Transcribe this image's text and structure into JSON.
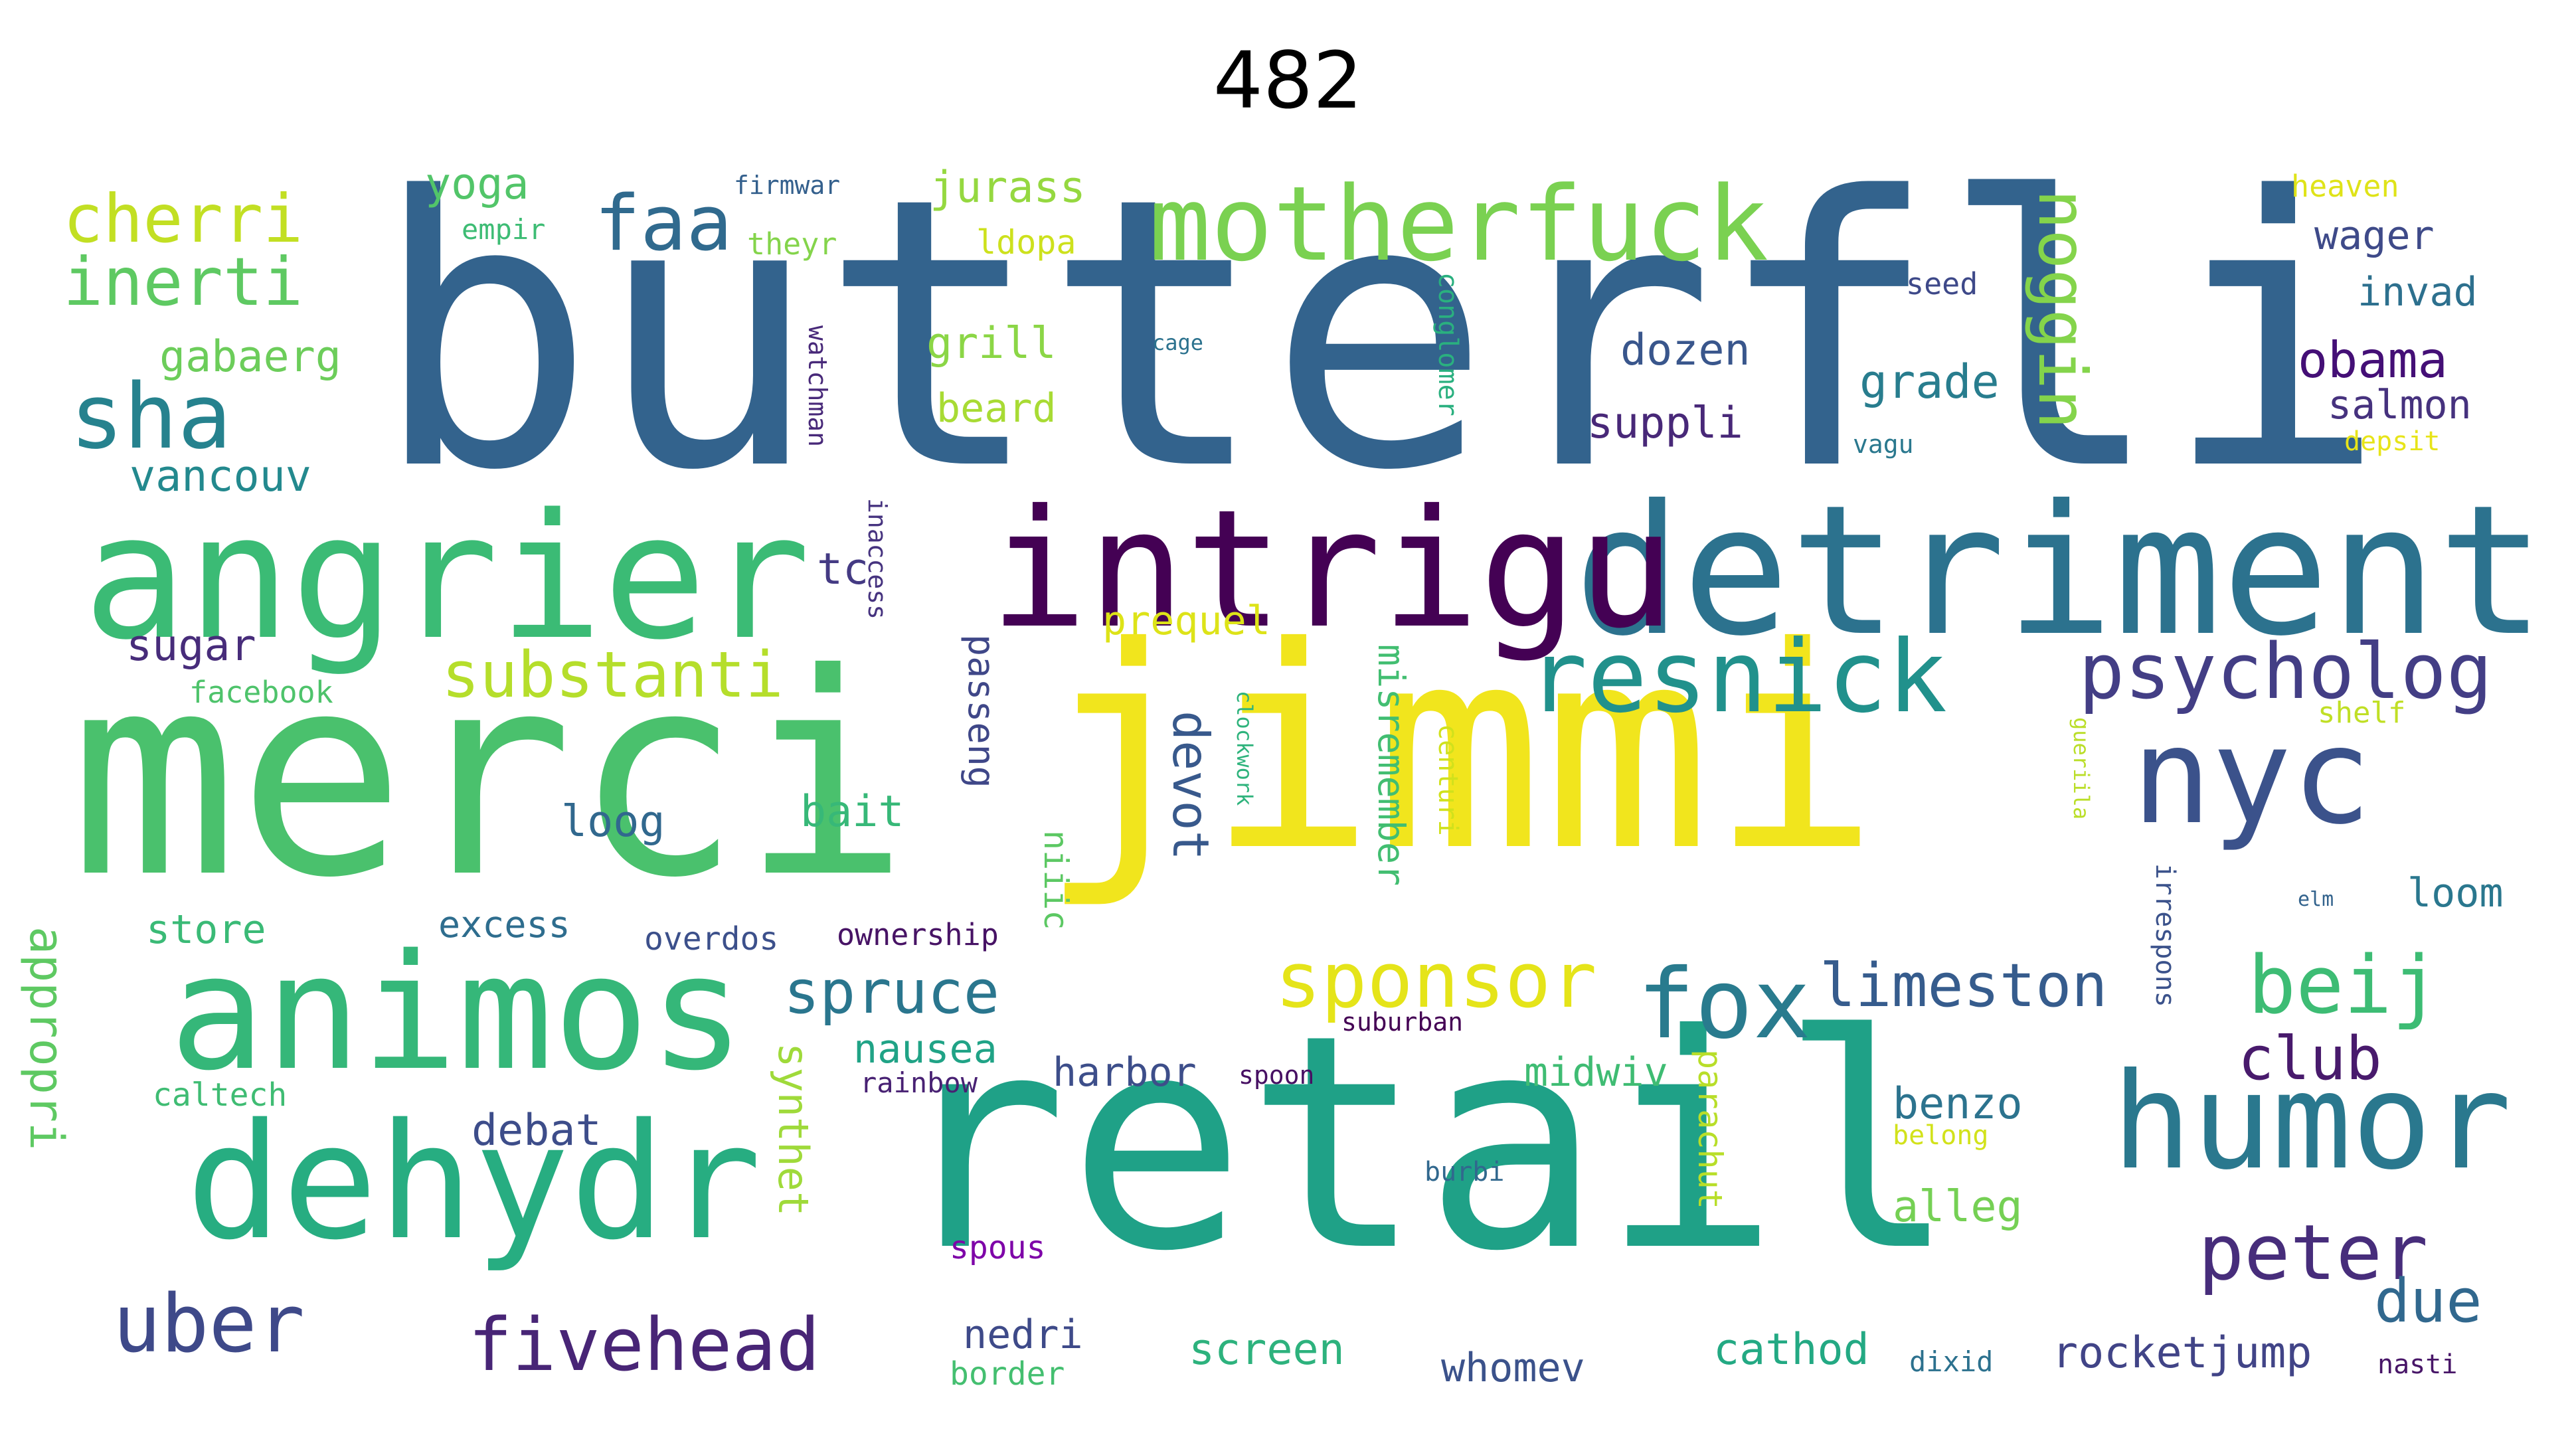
{
  "title": "482",
  "words": [
    {
      "text": "butterfli",
      "color": "#33638d"
    },
    {
      "text": "merci",
      "color": "#4ac16d"
    },
    {
      "text": "jimmi",
      "color": "#f1e51d"
    },
    {
      "text": "retail",
      "color": "#1fa187"
    },
    {
      "text": "detriment",
      "color": "#2c728e"
    },
    {
      "text": "angrier",
      "color": "#3bbb75"
    },
    {
      "text": "intrigu",
      "color": "#440154"
    },
    {
      "text": "animos",
      "color": "#35b779"
    },
    {
      "text": "dehydr",
      "color": "#27ad81"
    },
    {
      "text": "nyc",
      "color": "#3b528b"
    },
    {
      "text": "humor",
      "color": "#2a788e"
    },
    {
      "text": "motherfuck",
      "color": "#7ad151"
    },
    {
      "text": "resnick",
      "color": "#21918c"
    },
    {
      "text": "psycholog",
      "color": "#433e85"
    },
    {
      "text": "sponsor",
      "color": "#e5e419"
    },
    {
      "text": "fox",
      "color": "#297b8e"
    },
    {
      "text": "beij",
      "color": "#3dbc74"
    },
    {
      "text": "limeston",
      "color": "#365c8d"
    },
    {
      "text": "peter",
      "color": "#472d7b"
    },
    {
      "text": "uber",
      "color": "#3e4989"
    },
    {
      "text": "fivehead",
      "color": "#482576"
    },
    {
      "text": "cherri",
      "color": "#c2df23"
    },
    {
      "text": "inerti",
      "color": "#5ec962"
    },
    {
      "text": "sha",
      "color": "#26828e"
    },
    {
      "text": "faa",
      "color": "#306a8e"
    },
    {
      "text": "substanti",
      "color": "#b5de2b"
    },
    {
      "text": "spruce",
      "color": "#2a768e"
    },
    {
      "text": "noggin",
      "color": "#84d44b"
    },
    {
      "text": "obama",
      "color": "#440f76"
    },
    {
      "text": "club",
      "color": "#481a6c"
    },
    {
      "text": "due",
      "color": "#31688e"
    },
    {
      "text": "devot",
      "color": "#38598c"
    },
    {
      "text": "appropri",
      "color": "#5ec962"
    },
    {
      "text": "misremember",
      "color": "#42be71"
    },
    {
      "text": "passeng",
      "color": "#3f4788"
    },
    {
      "text": "yoga",
      "color": "#52c569"
    },
    {
      "text": "jurass",
      "color": "#95d840"
    },
    {
      "text": "dozen",
      "color": "#39568c"
    },
    {
      "text": "grade",
      "color": "#287d8e"
    },
    {
      "text": "suppli",
      "color": "#482878"
    },
    {
      "text": "gabaerg",
      "color": "#6ccd5a"
    },
    {
      "text": "grill",
      "color": "#8bd646"
    },
    {
      "text": "beard",
      "color": "#a8db34"
    },
    {
      "text": "vancouv",
      "color": "#23898e"
    },
    {
      "text": "tc",
      "color": "#443a83"
    },
    {
      "text": "sugar",
      "color": "#472c7a"
    },
    {
      "text": "wager",
      "color": "#3e4a89"
    },
    {
      "text": "invad",
      "color": "#2d708e"
    },
    {
      "text": "salmon",
      "color": "#46327e"
    },
    {
      "text": "loog",
      "color": "#31688e"
    },
    {
      "text": "bait",
      "color": "#37b878"
    },
    {
      "text": "nausea",
      "color": "#20a386"
    },
    {
      "text": "harbor",
      "color": "#3d4e8a"
    },
    {
      "text": "benzo",
      "color": "#2c738e"
    },
    {
      "text": "debat",
      "color": "#3d4d8a"
    },
    {
      "text": "store",
      "color": "#3aba76"
    },
    {
      "text": "excess",
      "color": "#2e6d8e"
    },
    {
      "text": "midwiv",
      "color": "#3fbc73"
    },
    {
      "text": "alleg",
      "color": "#75d054"
    },
    {
      "text": "loom",
      "color": "#2a778e"
    },
    {
      "text": "whomev",
      "color": "#3b528b"
    },
    {
      "text": "cathod",
      "color": "#23a983"
    },
    {
      "text": "rocketjump",
      "color": "#414487"
    },
    {
      "text": "screen",
      "color": "#2db27d"
    },
    {
      "text": "nedri",
      "color": "#3e4a89"
    },
    {
      "text": "border",
      "color": "#44bf70"
    },
    {
      "text": "spous",
      "color": "#7e03a8"
    },
    {
      "text": "synthet",
      "color": "#9fda3a"
    },
    {
      "text": "parachut",
      "color": "#b8de29"
    },
    {
      "text": "prequel",
      "color": "#dde318"
    },
    {
      "text": "centuri",
      "color": "#d0e11c"
    },
    {
      "text": "conglomer",
      "color": "#2ab07f"
    },
    {
      "text": "watchman",
      "color": "#482979"
    },
    {
      "text": "inaccess",
      "color": "#46337f"
    },
    {
      "text": "niiic",
      "color": "#5cc863"
    },
    {
      "text": "clockwork",
      "color": "#2eb37c"
    },
    {
      "text": "ownership",
      "color": "#471365"
    },
    {
      "text": "overdos",
      "color": "#3c508b"
    },
    {
      "text": "rainbow",
      "color": "#482173"
    },
    {
      "text": "suburban",
      "color": "#440154"
    },
    {
      "text": "spoon",
      "color": "#471063"
    },
    {
      "text": "caltech",
      "color": "#3fbc73"
    },
    {
      "text": "burbi",
      "color": "#31688e"
    },
    {
      "text": "belong",
      "color": "#d2e21b"
    },
    {
      "text": "irrespons",
      "color": "#3b528b"
    },
    {
      "text": "gueriila",
      "color": "#bade28"
    },
    {
      "text": "elm",
      "color": "#33638d"
    },
    {
      "text": "firmwar",
      "color": "#34608d"
    },
    {
      "text": "empir",
      "color": "#3dbc74"
    },
    {
      "text": "theyr",
      "color": "#84d44b"
    },
    {
      "text": "ldopa",
      "color": "#cde11d"
    },
    {
      "text": "cage",
      "color": "#2c728e"
    },
    {
      "text": "seed",
      "color": "#3e4989"
    },
    {
      "text": "vagu",
      "color": "#2a788e"
    },
    {
      "text": "heaven",
      "color": "#dfe318"
    },
    {
      "text": "depsit",
      "color": "#e7e419"
    },
    {
      "text": "shelf",
      "color": "#c0df25"
    },
    {
      "text": "facebook",
      "color": "#4ec36b"
    },
    {
      "text": "dixid",
      "color": "#2c718e"
    },
    {
      "text": "nasti",
      "color": "#481668"
    }
  ]
}
